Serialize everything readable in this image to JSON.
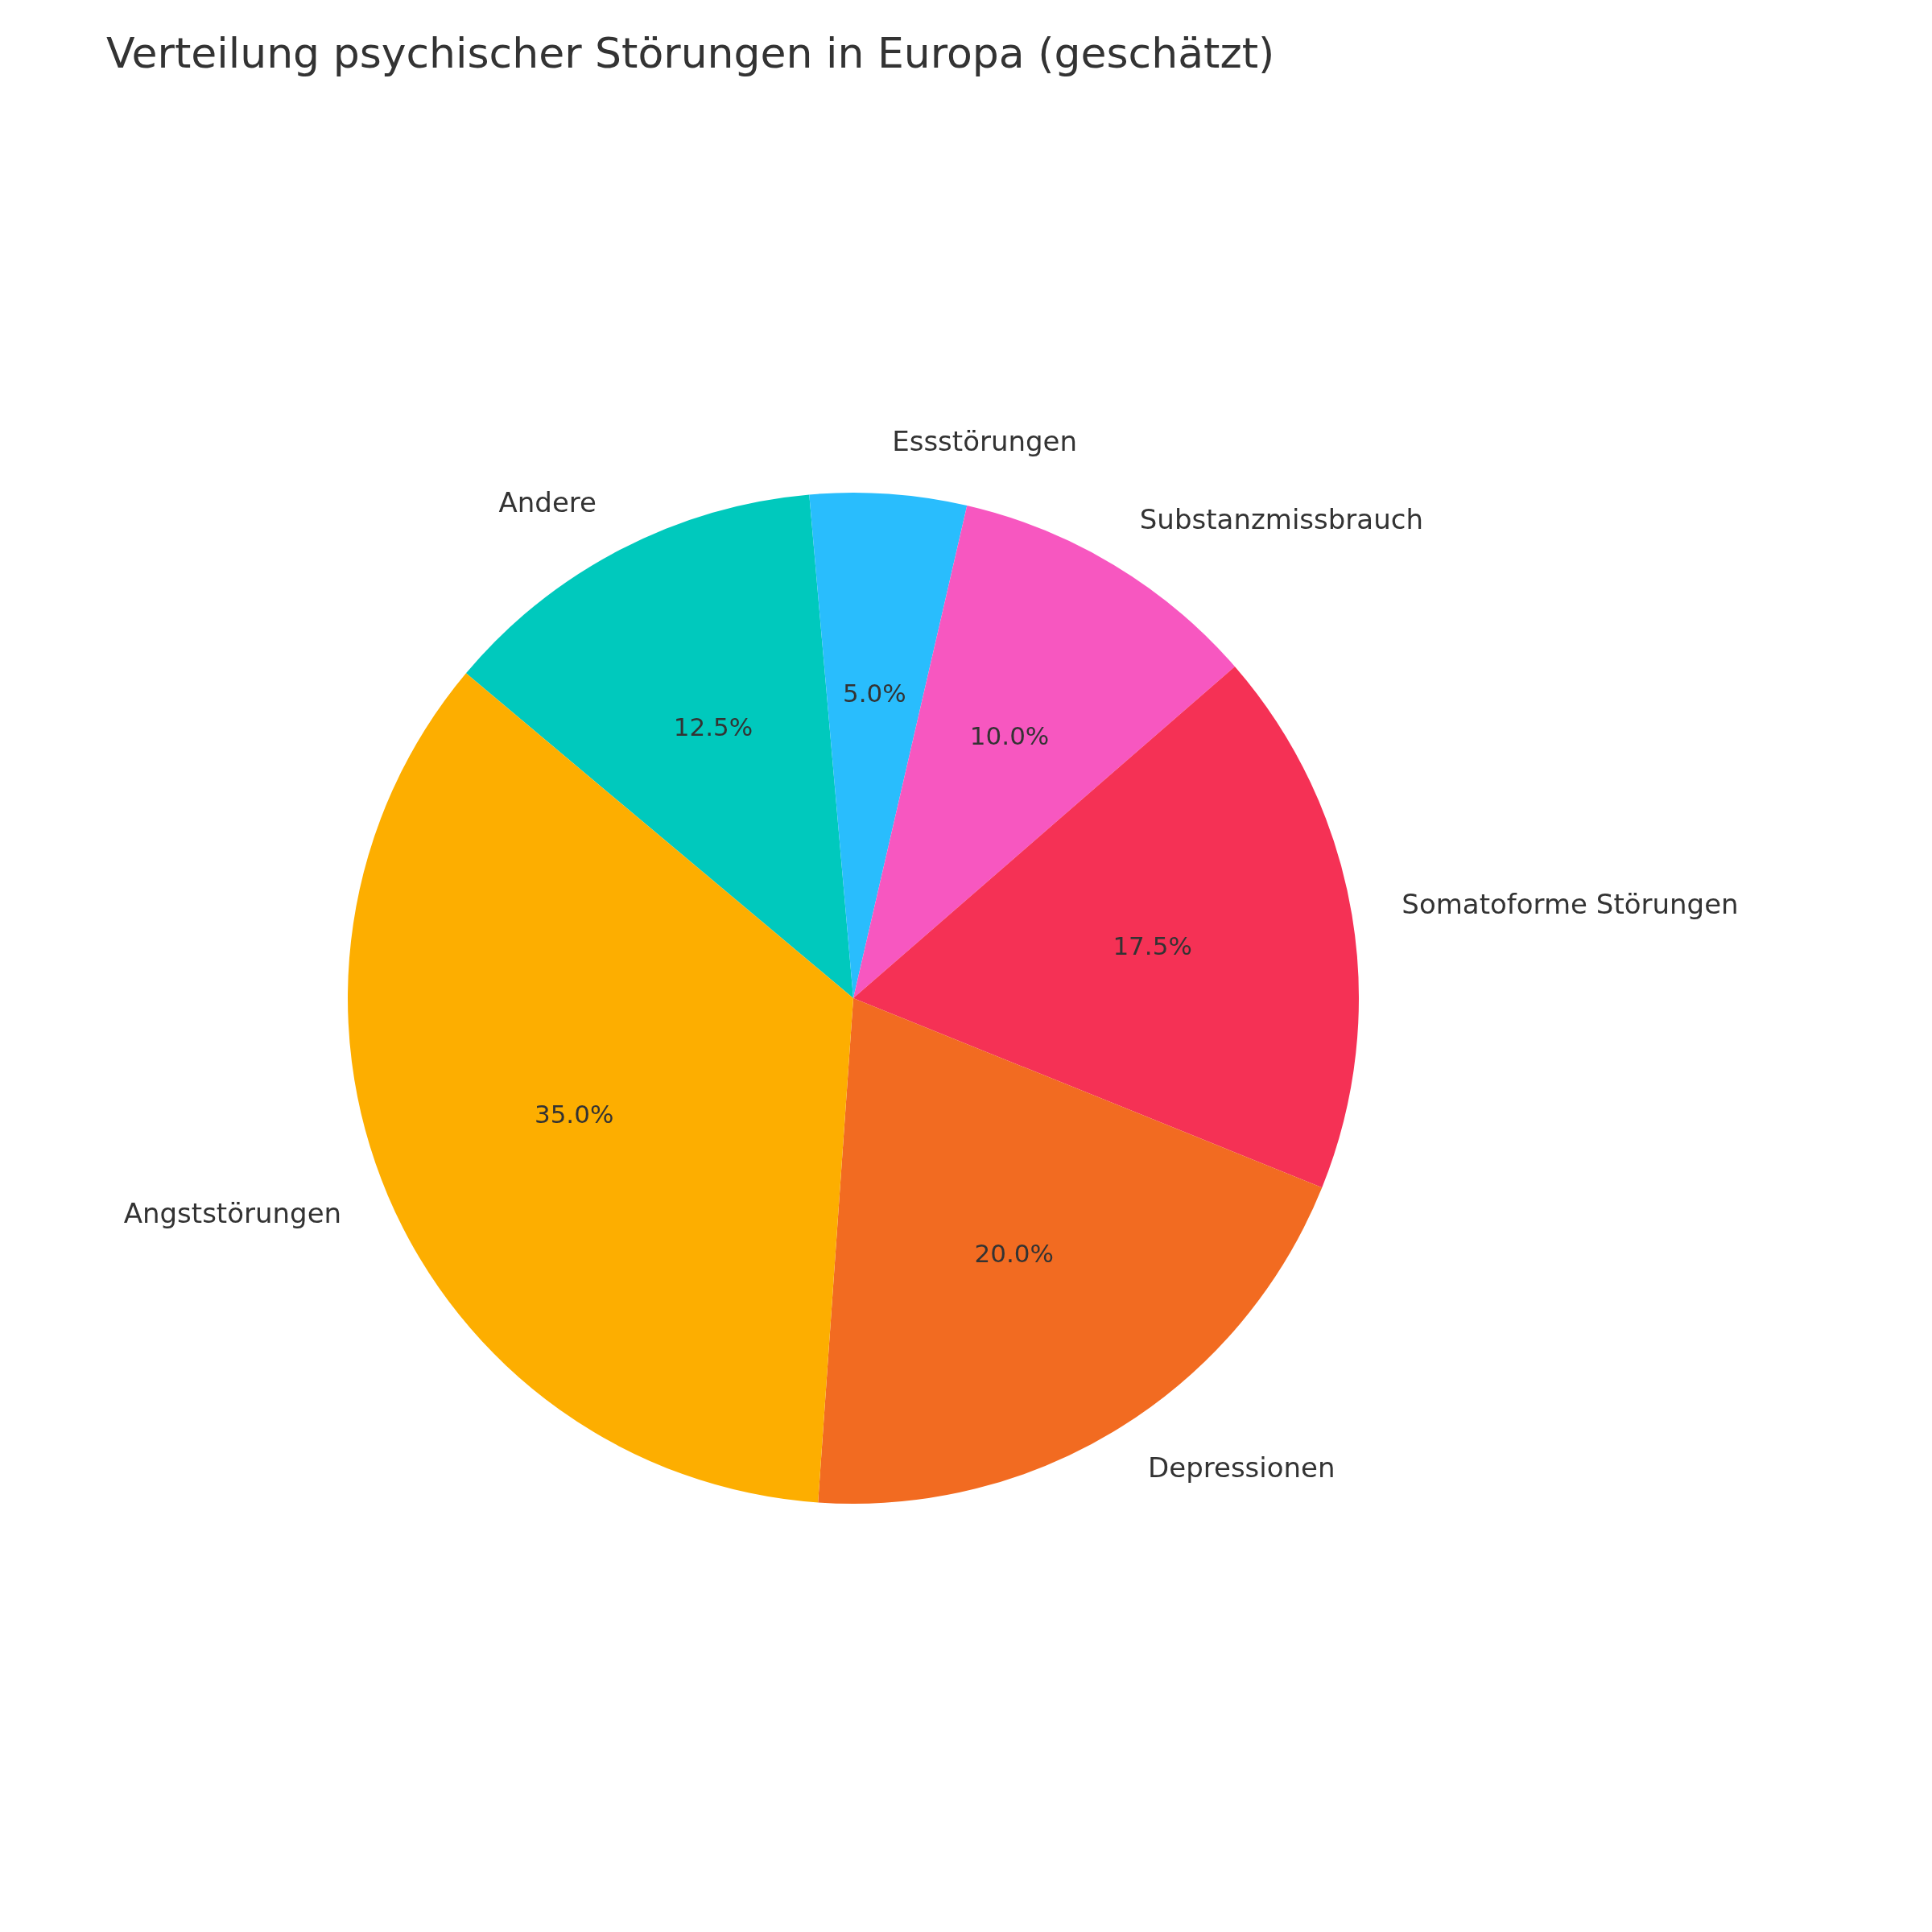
{
  "chart_data": {
    "type": "pie",
    "title": "Verteilung psychischer Störungen in Europa (geschätzt)",
    "categories": [
      "Andere",
      "Essstörungen",
      "Substanzmissbrauch",
      "Somatoforme Störungen",
      "Depressionen",
      "Angststörungen"
    ],
    "values": [
      12.5,
      5,
      10,
      17.5,
      20,
      35
    ],
    "value_labels": [
      "12.5%",
      "5.0%",
      "10.0%",
      "17.5%",
      "20.0%",
      "35.0%"
    ],
    "colors": [
      "#00c9bd",
      "#29bdfd",
      "#f757c0",
      "#f53155",
      "#f26b21",
      "#fdae00"
    ]
  }
}
